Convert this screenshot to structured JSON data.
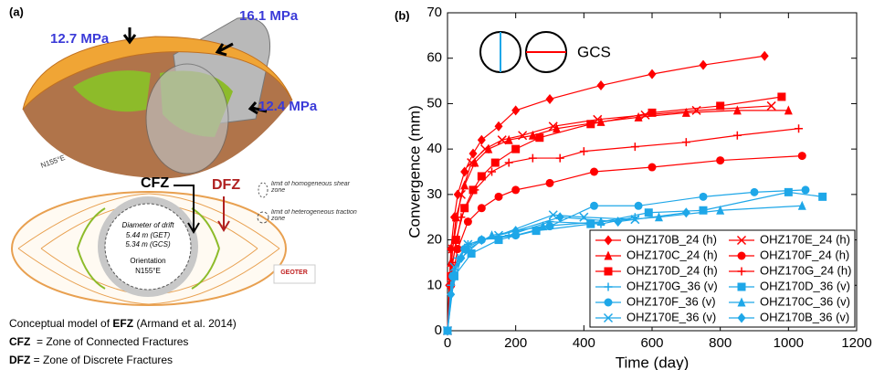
{
  "panel_a": {
    "label": "(a)",
    "stress_1": "12.7 MPa",
    "stress_2": "16.1 MPa",
    "stress_3": "12.4 MPa",
    "orientation_top": "N155°E",
    "cfz": "CFZ",
    "dfz": "DFZ",
    "limit_shear": "limit of homogeneous shear zone",
    "limit_traction": "limit of heterogeneous traction zone",
    "drift_title": "Diameter of drift",
    "drift_get": "5.44 m (GET)",
    "drift_gcs": "5.34 m (GCS)",
    "orient_title": "Orientation",
    "orient_value": "N155°E",
    "logo": "GEOTER"
  },
  "caption": {
    "line1": {
      "prefix": "Conceptual model of ",
      "bold": "EFZ",
      "suffix": " (Armand et al. 2014)"
    },
    "line2": {
      "bold": "CFZ",
      "text": "  = Zone of Connected Fractures"
    },
    "line3": {
      "bold": "DFZ",
      "text": " = Zone of Discrete Fractures"
    }
  },
  "chart_data": {
    "type": "line",
    "panel_label": "(b)",
    "annotation": "GCS",
    "x_label": "Time (day)",
    "y_label": "Convergence (mm)",
    "xlim": [
      0,
      1200
    ],
    "ylim": [
      0,
      70
    ],
    "xticks": [
      0,
      200,
      400,
      600,
      800,
      1000,
      1200
    ],
    "yticks": [
      0,
      10,
      20,
      30,
      40,
      50,
      60,
      70
    ],
    "series": [
      {
        "name": "OHZ170B_24 (h)",
        "color": "#ff0000",
        "marker": "diamond",
        "x": [
          0,
          5,
          10,
          20,
          30,
          50,
          75,
          100,
          150,
          200,
          300,
          450,
          600,
          750,
          930
        ],
        "values": [
          0,
          10,
          18,
          25,
          30,
          35,
          39,
          42,
          45,
          48.5,
          51,
          54,
          56.5,
          58.5,
          60.5
        ]
      },
      {
        "name": "OHZ170E_24 (h)",
        "color": "#ff0000",
        "marker": "x",
        "x": [
          0,
          15,
          40,
          70,
          110,
          160,
          220,
          310,
          440,
          580,
          730,
          950
        ],
        "values": [
          0,
          18,
          30,
          37,
          40,
          42,
          43,
          45,
          46.5,
          47.5,
          48.5,
          49.5
        ]
      },
      {
        "name": "OHZ170C_24 (h)",
        "color": "#ff0000",
        "marker": "triangle",
        "x": [
          0,
          10,
          25,
          50,
          80,
          120,
          180,
          250,
          320,
          450,
          560,
          700,
          850,
          1000
        ],
        "values": [
          0,
          15,
          25,
          32,
          37,
          40,
          42,
          43,
          44.5,
          46,
          47,
          48,
          48.5,
          48.5
        ]
      },
      {
        "name": "OHZ170F_24 (h)",
        "color": "#ff0000",
        "marker": "circle",
        "x": [
          0,
          10,
          30,
          60,
          100,
          150,
          200,
          300,
          430,
          600,
          800,
          1040
        ],
        "values": [
          0,
          10,
          18,
          24,
          27,
          29.5,
          31,
          32.5,
          35,
          36,
          37.5,
          38.5
        ]
      },
      {
        "name": "OHZ170D_24 (h)",
        "color": "#ff0000",
        "marker": "square",
        "x": [
          0,
          10,
          25,
          50,
          75,
          100,
          140,
          200,
          270,
          420,
          600,
          800,
          980
        ],
        "values": [
          0,
          12,
          20,
          27,
          31,
          34,
          37,
          40,
          42.5,
          45.5,
          48,
          49.5,
          51.5
        ]
      },
      {
        "name": "OHZ170G_24 (h)",
        "color": "#ff0000",
        "marker": "plus",
        "x": [
          0,
          15,
          40,
          80,
          130,
          180,
          250,
          330,
          400,
          550,
          700,
          850,
          1030
        ],
        "values": [
          0,
          15,
          25,
          31,
          35,
          37,
          38,
          38,
          39.5,
          40.5,
          41.5,
          43,
          44.5
        ]
      },
      {
        "name": "OHZ170G_36 (v)",
        "color": "#1ea7e8",
        "marker": "plus",
        "x": [
          0,
          10,
          30,
          60,
          100,
          180,
          300,
          450,
          550
        ],
        "values": [
          0,
          10,
          16,
          19,
          20,
          21,
          24,
          23.5,
          25
        ]
      },
      {
        "name": "OHZ170D_36 (v)",
        "color": "#1ea7e8",
        "marker": "square",
        "x": [
          0,
          20,
          70,
          150,
          260,
          420,
          590,
          750,
          1000,
          1100
        ],
        "values": [
          0,
          12,
          17,
          20,
          22,
          23.5,
          26,
          26.5,
          30.5,
          29.5
        ]
      },
      {
        "name": "OHZ170F_36 (v)",
        "color": "#1ea7e8",
        "marker": "circle",
        "x": [
          0,
          15,
          50,
          100,
          200,
          300,
          430,
          560,
          750,
          900,
          1050
        ],
        "values": [
          0,
          12,
          18,
          20,
          21,
          23,
          27.5,
          27.5,
          29.5,
          30.5,
          31
        ]
      },
      {
        "name": "OHZ170C_36 (v)",
        "color": "#1ea7e8",
        "marker": "triangle",
        "x": [
          0,
          20,
          60,
          130,
          280,
          450,
          620,
          800,
          1040
        ],
        "values": [
          0,
          13,
          18,
          21,
          23,
          24,
          25,
          26.5,
          27.5
        ]
      },
      {
        "name": "OHZ170E_36 (v)",
        "color": "#1ea7e8",
        "marker": "x",
        "x": [
          0,
          20,
          60,
          150,
          310,
          400,
          550
        ],
        "values": [
          0,
          14,
          19,
          21,
          25.5,
          25,
          24.5
        ]
      },
      {
        "name": "OHZ170B_36 (v)",
        "color": "#1ea7e8",
        "marker": "diamond",
        "x": [
          0,
          10,
          40,
          100,
          200,
          330,
          500,
          700
        ],
        "values": [
          0,
          8,
          16,
          20,
          22,
          25,
          24,
          26
        ]
      }
    ]
  }
}
